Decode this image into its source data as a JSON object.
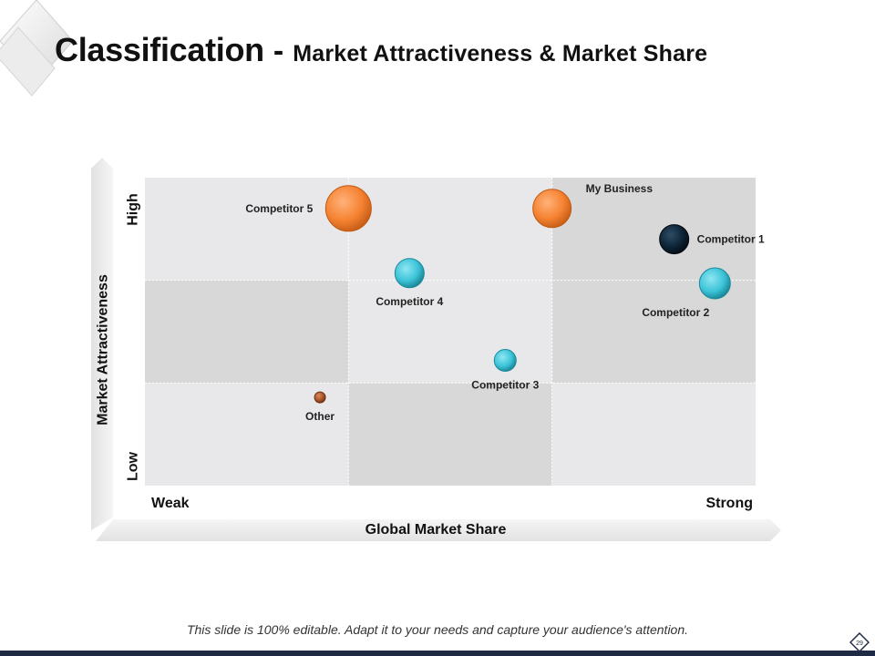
{
  "title": {
    "main": "Classification",
    "separator": "-",
    "sub": "Market Attractiveness & Market Share"
  },
  "footer_note": "This slide is 100% editable.  Adapt it to your needs and capture your audience's attention.",
  "page_number": "29",
  "colors": {
    "orange": "#f58231",
    "teal": "#3cc3d8",
    "navy": "#0d2436",
    "brown": "#a9552a",
    "cell_light": "#e8e8ea",
    "cell_dark": "#d8d8d8"
  },
  "chart_data": {
    "type": "scatter",
    "subtype": "bubble",
    "xlabel": "Global Market Share",
    "ylabel": "Market Attractiveness",
    "x_ticks": [
      "Weak",
      "Strong"
    ],
    "y_ticks": [
      "Low",
      "High"
    ],
    "xlim": [
      0,
      3
    ],
    "ylim": [
      0,
      3
    ],
    "grid": "3x3",
    "points": [
      {
        "label": "Competitor 5",
        "x": 1.0,
        "y": 2.7,
        "size": 25,
        "color": "orange",
        "label_position": "left"
      },
      {
        "label": "My Business",
        "x": 2.0,
        "y": 2.7,
        "size": 21,
        "color": "orange",
        "label_position": "top-right"
      },
      {
        "label": "Competitor 1",
        "x": 2.6,
        "y": 2.4,
        "size": 16,
        "color": "navy",
        "label_position": "right"
      },
      {
        "label": "Competitor 4",
        "x": 1.3,
        "y": 2.07,
        "size": 16,
        "color": "teal",
        "label_position": "below"
      },
      {
        "label": "Competitor 2",
        "x": 2.8,
        "y": 1.97,
        "size": 17,
        "color": "teal",
        "label_position": "below-left"
      },
      {
        "label": "Competitor 3",
        "x": 1.77,
        "y": 1.22,
        "size": 12,
        "color": "teal",
        "label_position": "below"
      },
      {
        "label": "Other",
        "x": 0.86,
        "y": 0.86,
        "size": 6,
        "color": "brown",
        "label_position": "below"
      }
    ]
  }
}
